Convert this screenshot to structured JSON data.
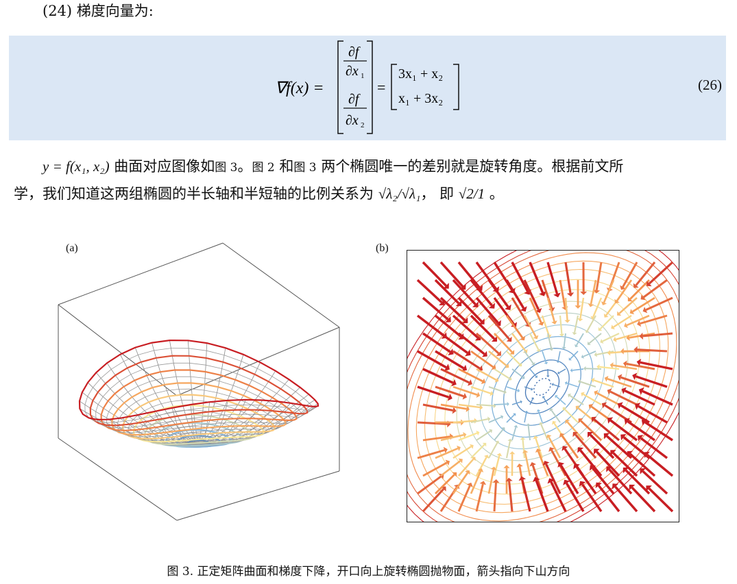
{
  "heading": "(24) 梯度向量为:",
  "equation": {
    "number": "(26)",
    "lhs": "∇f(x) =",
    "partial_f": "∂f",
    "partial_x1": "∂x",
    "partial_x2": "∂x",
    "row1": "3x₁ + x₂",
    "row2": "x₁ + 3x₂"
  },
  "paragraph": {
    "line1_math": "y = f(x₁, x₂)",
    "line1_a": " 曲面对应图像如",
    "fig3_ref_a": "图 3",
    "line1_b": "。",
    "fig2_ref": "图 2",
    "line1_c": " 和",
    "fig3_ref_b": "图 3",
    "line1_d": " 两个椭圆唯一的差别就是旋转角度。根据前文所",
    "line2_a": "学，我们知道这两组椭圆的半长轴和半短轴的比例关系为 ",
    "ratio_expr": "√λ₂/√λ₁",
    "line2_b": "， 即 ",
    "ratio_value": "√2/1",
    "line2_c": " 。"
  },
  "figure": {
    "panel_a_label": "(a)",
    "panel_b_label": "(b)",
    "caption": "图 3. 正定矩阵曲面和梯度下降，开口向上旋转椭圆抛物面，箭头指向下山方向"
  }
}
